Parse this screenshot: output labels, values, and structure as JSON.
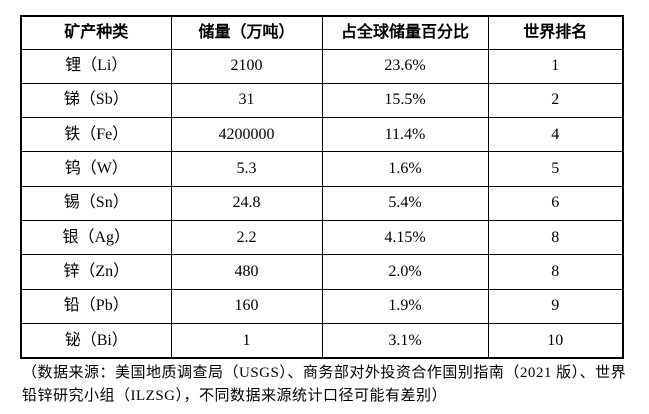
{
  "table": {
    "headers": [
      "矿产种类",
      "储量（万吨）",
      "占全球储量百分比",
      "世界排名"
    ],
    "rows": [
      {
        "mineral": "锂（Li）",
        "reserves": "2100",
        "percent": "23.6%",
        "rank": "1"
      },
      {
        "mineral": "锑（Sb）",
        "reserves": "31",
        "percent": "15.5%",
        "rank": "2"
      },
      {
        "mineral": "铁（Fe）",
        "reserves": "4200000",
        "percent": "11.4%",
        "rank": "4"
      },
      {
        "mineral": "钨（W）",
        "reserves": "5.3",
        "percent": "1.6%",
        "rank": "5"
      },
      {
        "mineral": "锡（Sn）",
        "reserves": "24.8",
        "percent": "5.4%",
        "rank": "6"
      },
      {
        "mineral": "银（Ag）",
        "reserves": "2.2",
        "percent": "4.15%",
        "rank": "8"
      },
      {
        "mineral": "锌（Zn）",
        "reserves": "480",
        "percent": "2.0%",
        "rank": "8"
      },
      {
        "mineral": "铅（Pb）",
        "reserves": "160",
        "percent": "1.9%",
        "rank": "9"
      },
      {
        "mineral": "铋（Bi）",
        "reserves": "1",
        "percent": "3.1%",
        "rank": "10"
      }
    ]
  },
  "footnote": "（数据来源：美国地质调查局（USGS）、商务部对外投资合作国别指南（2021 版）、世界铅锌研究小组（ILZSG），不同数据来源统计口径可能有差别）",
  "colors": {
    "text": "#000000",
    "border": "#000000",
    "background": "#ffffff"
  }
}
